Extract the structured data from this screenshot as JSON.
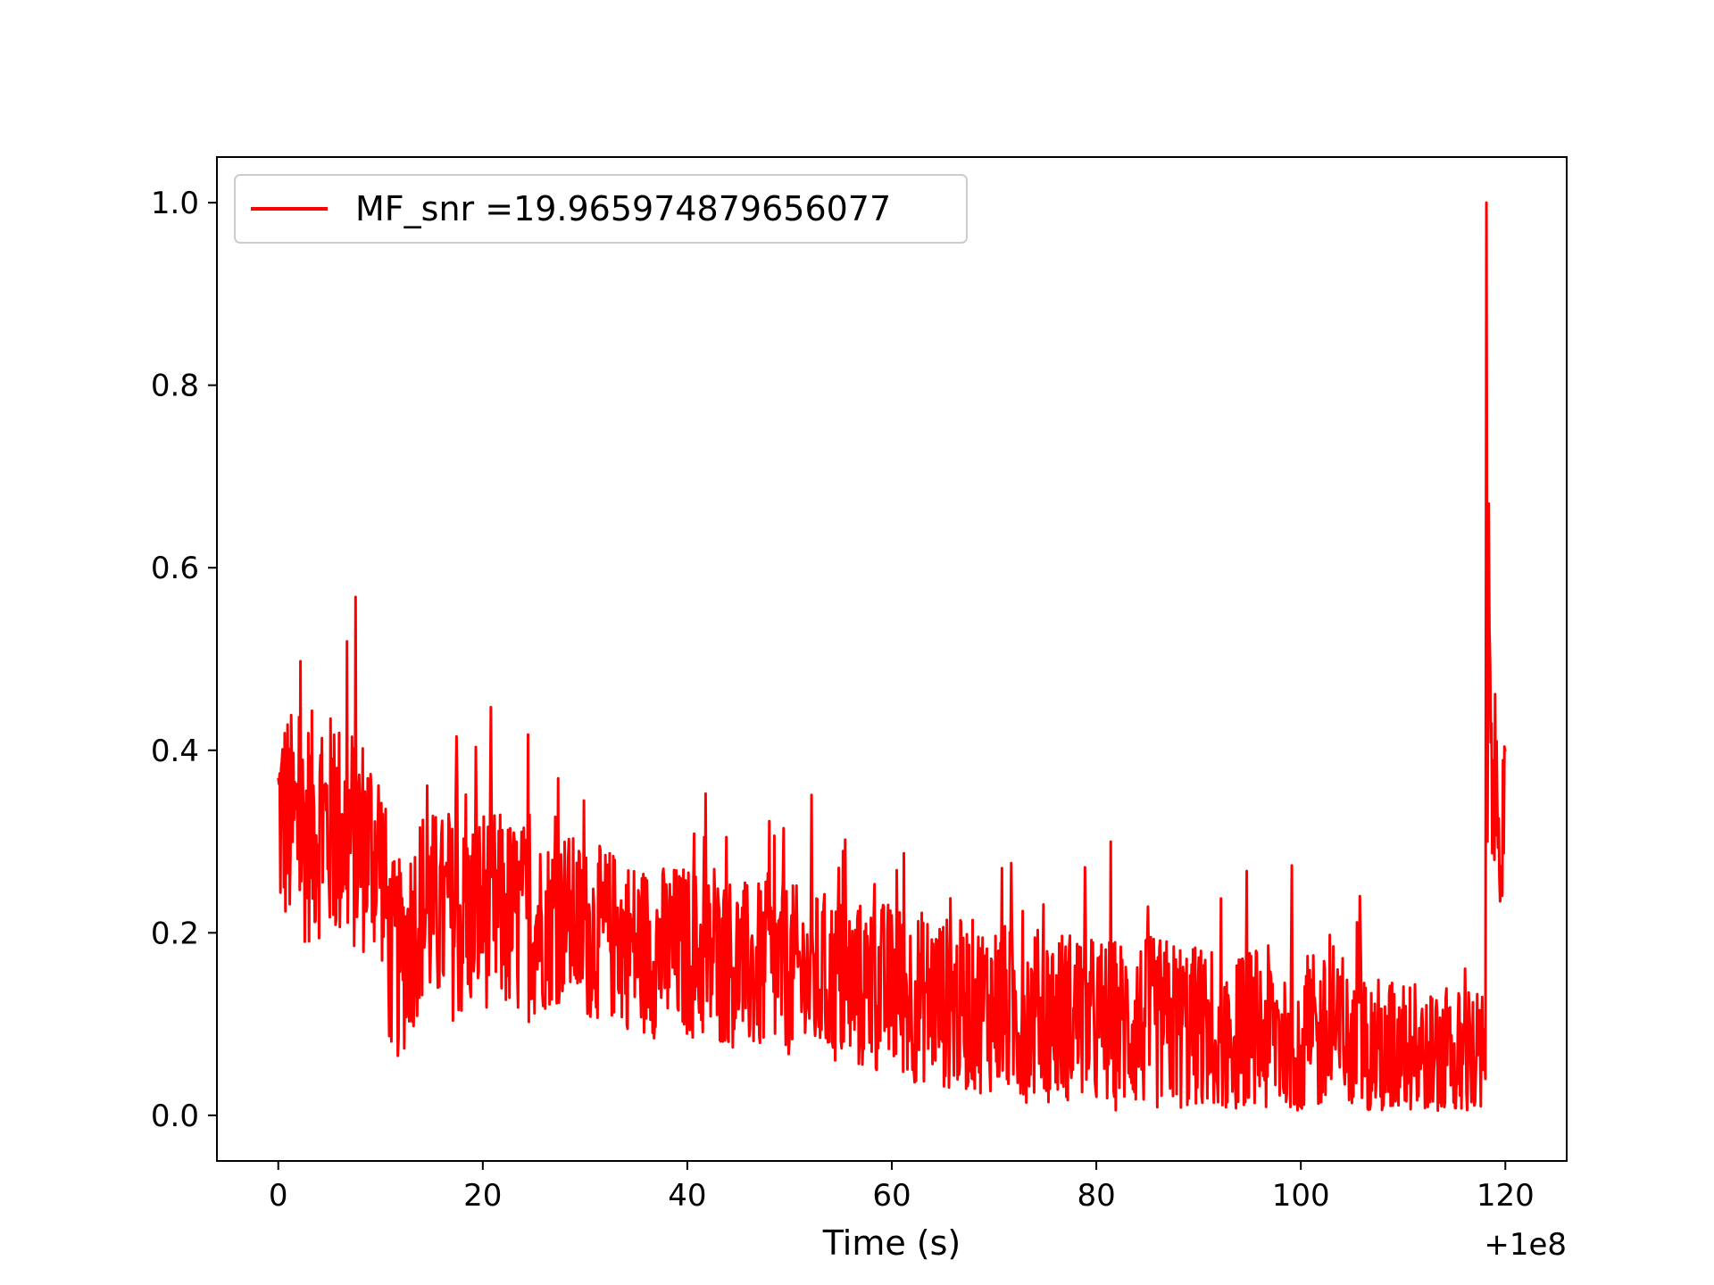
{
  "chart_data": {
    "type": "line",
    "title": "",
    "xlabel": "Time (s)",
    "ylabel": "",
    "x_offset_label": "+1e8",
    "xlim": [
      -6,
      126
    ],
    "ylim": [
      -0.05,
      1.05
    ],
    "x_ticks": [
      0,
      20,
      40,
      60,
      80,
      100,
      120
    ],
    "x_tick_labels": [
      "0",
      "20",
      "40",
      "60",
      "80",
      "100",
      "120"
    ],
    "y_ticks": [
      0.0,
      0.2,
      0.4,
      0.6,
      0.8,
      1.0
    ],
    "y_tick_labels": [
      "0.0",
      "0.2",
      "0.4",
      "0.6",
      "0.8",
      "1.0"
    ],
    "grid": false,
    "legend": {
      "position": "upper-left"
    },
    "series": [
      {
        "name": "MF_snr =19.965974879656077",
        "color": "#ff0000",
        "x": [
          0,
          2,
          4,
          6,
          8,
          10,
          11,
          12,
          14,
          16,
          18,
          20,
          22,
          24,
          26,
          28,
          30,
          32,
          34,
          36,
          38,
          40,
          42,
          44,
          46,
          48,
          50,
          52,
          54,
          56,
          58,
          60,
          62,
          64,
          66,
          68,
          70,
          72,
          74,
          76,
          78,
          80,
          82,
          84,
          86,
          88,
          90,
          92,
          94,
          96,
          98,
          100,
          102,
          104,
          106,
          108,
          110,
          112,
          114,
          116,
          117,
          118,
          118.2,
          118.5,
          119,
          119.5,
          120
        ],
        "y": [
          0.33,
          0.31,
          0.32,
          0.31,
          0.3,
          0.29,
          0.17,
          0.17,
          0.23,
          0.22,
          0.21,
          0.23,
          0.22,
          0.21,
          0.21,
          0.22,
          0.2,
          0.2,
          0.19,
          0.18,
          0.18,
          0.18,
          0.17,
          0.17,
          0.16,
          0.16,
          0.16,
          0.15,
          0.15,
          0.14,
          0.14,
          0.14,
          0.13,
          0.13,
          0.12,
          0.12,
          0.12,
          0.11,
          0.11,
          0.11,
          0.11,
          0.1,
          0.1,
          0.1,
          0.1,
          0.1,
          0.09,
          0.09,
          0.09,
          0.09,
          0.09,
          0.08,
          0.08,
          0.08,
          0.08,
          0.07,
          0.07,
          0.07,
          0.06,
          0.06,
          0.06,
          0.06,
          1.0,
          0.4,
          0.35,
          0.33,
          0.32
        ],
        "noise_amplitude": [
          0.08,
          0.08,
          0.08,
          0.08,
          0.08,
          0.07,
          0.07,
          0.07,
          0.07,
          0.07,
          0.07,
          0.07,
          0.07,
          0.07,
          0.06,
          0.06,
          0.06,
          0.06,
          0.06,
          0.06,
          0.06,
          0.06,
          0.06,
          0.06,
          0.06,
          0.06,
          0.06,
          0.06,
          0.06,
          0.06,
          0.06,
          0.06,
          0.06,
          0.06,
          0.06,
          0.06,
          0.06,
          0.06,
          0.06,
          0.06,
          0.06,
          0.06,
          0.06,
          0.06,
          0.06,
          0.06,
          0.06,
          0.06,
          0.06,
          0.06,
          0.06,
          0.06,
          0.06,
          0.05,
          0.05,
          0.05,
          0.05,
          0.05,
          0.05,
          0.05,
          0.05,
          0.05,
          0.0,
          0.07,
          0.07,
          0.06,
          0.05
        ]
      }
    ]
  }
}
